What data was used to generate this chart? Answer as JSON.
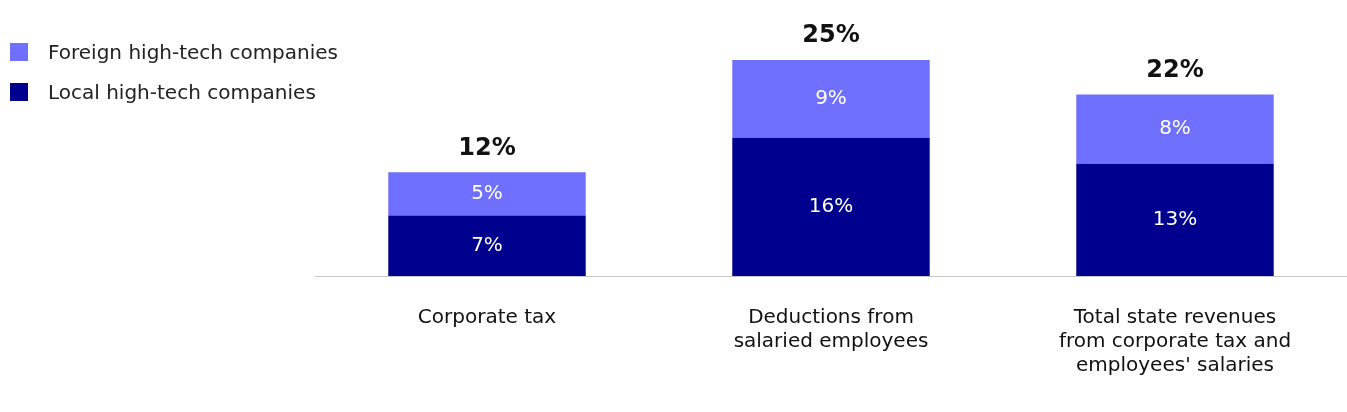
{
  "chart_data": {
    "type": "bar",
    "stacked": true,
    "legend": "top left",
    "categories": [
      "Corporate tax",
      "Deductions from salaried employees",
      "Total state revenues from corporate tax and employees' salaries"
    ],
    "series": [
      {
        "name": "Local high-tech companies",
        "color": "#00008f",
        "values": [
          7,
          16,
          13
        ],
        "value_labels": [
          "7%",
          "16%",
          "13%"
        ]
      },
      {
        "name": "Foreign high-tech companies",
        "color": "#7070ff",
        "values": [
          5,
          9,
          8
        ],
        "value_labels": [
          "5%",
          "9%",
          "8%"
        ]
      }
    ],
    "totals": [
      "12%",
      "25%",
      "22%"
    ]
  }
}
